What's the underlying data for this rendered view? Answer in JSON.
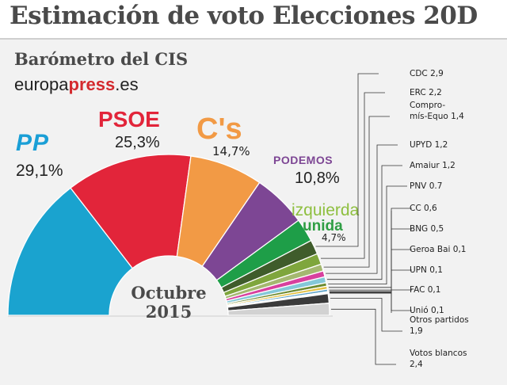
{
  "header": {
    "title": "Estimación de voto Elecciones 20D",
    "subtitle": "Barómetro del CIS",
    "source_prefix": "europa",
    "source_brand": "press",
    "source_suffix": ".es"
  },
  "chart_data": {
    "type": "pie",
    "subtype": "half-donut (parliament)",
    "title": "Estimación de voto Elecciones 20D",
    "subtitle": "Barómetro del CIS",
    "center_label": [
      "Octubre",
      "2015"
    ],
    "unit": "%",
    "series": [
      {
        "name": "PP",
        "label": "PP",
        "value": 29.1,
        "value_label": "29,1%",
        "color": "#1aa3cf"
      },
      {
        "name": "PSOE",
        "label": "PSOE",
        "value": 25.3,
        "value_label": "25,3%",
        "color": "#e2253a"
      },
      {
        "name": "C's",
        "label": "C's",
        "value": 14.7,
        "value_label": "14,7%",
        "color": "#f29a45"
      },
      {
        "name": "PODEMOS",
        "label": "PODEMOS",
        "value": 10.8,
        "value_label": "10,8%",
        "color": "#7d4694"
      },
      {
        "name": "Izquierda Unida",
        "label": [
          "izquierda",
          "unida"
        ],
        "value": 4.7,
        "value_label": "4,7%",
        "color": "#1e9e48"
      },
      {
        "name": "CDC",
        "label": "CDC 2,9",
        "value": 2.9,
        "color": "#3f5c2b"
      },
      {
        "name": "ERC",
        "label": "ERC 2,2",
        "value": 2.2,
        "color": "#7fa63d"
      },
      {
        "name": "Compromís-Equo",
        "label": [
          "Compro-",
          "mís-Equo 1,4"
        ],
        "value": 1.4,
        "color": "#a4b870"
      },
      {
        "name": "UPYD",
        "label": "UPYD 1,2",
        "value": 1.2,
        "color": "#d8409e"
      },
      {
        "name": "Amaiur",
        "label": "Amaiur 1,2",
        "value": 1.2,
        "color": "#84c8d8"
      },
      {
        "name": "PNV",
        "label": "PNV 0.7",
        "value": 0.7,
        "color": "#6c8a30"
      },
      {
        "name": "CC",
        "label": "CC 0,6",
        "value": 0.6,
        "color": "#e3c040"
      },
      {
        "name": "BNG",
        "label": "BNG 0,5",
        "value": 0.5,
        "color": "#5da2c8"
      },
      {
        "name": "Geroa Bai",
        "label": "Geroa Bai 0,1",
        "value": 0.1,
        "color": "#c83a2e"
      },
      {
        "name": "UPN",
        "label": "UPN 0,1",
        "value": 0.1,
        "color": "#2e6aa8"
      },
      {
        "name": "FAC",
        "label": "FAC 0,1",
        "value": 0.1,
        "color": "#8a2a5a"
      },
      {
        "name": "Unió",
        "label": "Unió 0,1",
        "value": 0.1,
        "color": "#2a5c8a"
      },
      {
        "name": "Otros partidos",
        "label": [
          "Otros partidos",
          "1,9"
        ],
        "value": 1.9,
        "color": "#3a3a3a"
      },
      {
        "name": "Votos blancos",
        "label": [
          "Votos blancos",
          "2,4"
        ],
        "value": 2.4,
        "color": "#d2d2d2"
      }
    ],
    "party_brand_colors": {
      "PP": "#1a9fd6",
      "PSOE": "#e2253a",
      "C's": "#f29a45",
      "PODEMOS": "#7d4694",
      "izquierda": "#8ebf3f",
      "unida": "#2f9e44"
    }
  }
}
